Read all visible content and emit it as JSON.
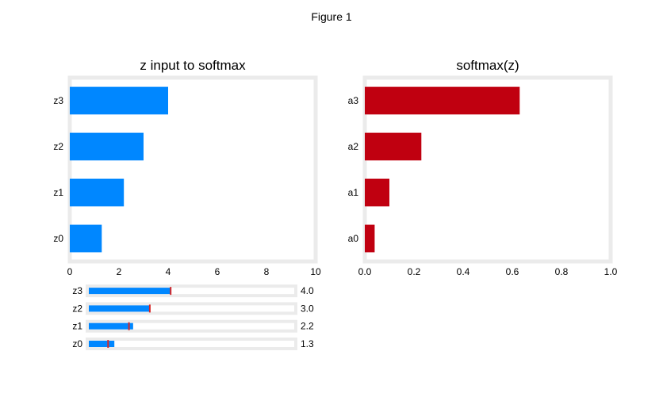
{
  "window": {
    "title": "Figure 1"
  },
  "chart_data": [
    {
      "type": "bar",
      "orientation": "horizontal",
      "title": "z input to softmax",
      "categories": [
        "z0",
        "z1",
        "z2",
        "z3"
      ],
      "values": [
        1.3,
        2.2,
        3.0,
        4.0
      ],
      "xlim": [
        0,
        10
      ],
      "xticks": [
        "0",
        "2",
        "4",
        "6",
        "8",
        "10"
      ],
      "color": "#0087ff",
      "grid": false
    },
    {
      "type": "bar",
      "orientation": "horizontal",
      "title": "softmax(z)",
      "categories": [
        "a0",
        "a1",
        "a2",
        "a3"
      ],
      "values": [
        0.04,
        0.1,
        0.23,
        0.63
      ],
      "xlim": [
        0,
        1.0
      ],
      "xticks": [
        "0.0",
        "0.2",
        "0.4",
        "0.6",
        "0.8",
        "1.0"
      ],
      "color": "#c00010",
      "grid": false
    },
    {
      "type": "bar",
      "orientation": "horizontal",
      "role": "slider-widgets",
      "categories": [
        "z0",
        "z1",
        "z2",
        "z3"
      ],
      "values": [
        1.3,
        2.2,
        3.0,
        4.0
      ],
      "value_labels": [
        "1.3",
        "2.2",
        "3.0",
        "4.0"
      ],
      "initial_values": [
        1.0,
        2.0,
        3.0,
        4.0
      ],
      "xlim": [
        0,
        10
      ],
      "fill_color": "#0087ff",
      "marker_color": "#d62728"
    }
  ]
}
